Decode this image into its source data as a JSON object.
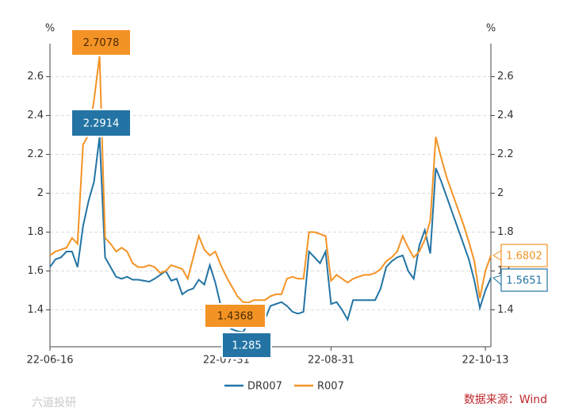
{
  "chart_data": {
    "type": "line",
    "y_label": "%",
    "y2_label": "%",
    "categories": [
      "22-06-16",
      null,
      null,
      null,
      null,
      null,
      null,
      null,
      null,
      null,
      null,
      null,
      null,
      null,
      null,
      null,
      null,
      null,
      null,
      null,
      null,
      null,
      null,
      null,
      null,
      null,
      null,
      null,
      null,
      null,
      null,
      null,
      "22-07-31",
      null,
      null,
      null,
      null,
      null,
      null,
      null,
      null,
      null,
      null,
      null,
      null,
      null,
      null,
      null,
      null,
      null,
      null,
      "22-08-31",
      null,
      null,
      null,
      null,
      null,
      null,
      null,
      null,
      null,
      null,
      null,
      null,
      null,
      null,
      null,
      null,
      null,
      null,
      null,
      null,
      null,
      null,
      null,
      null,
      null,
      null,
      null,
      "22-10-13",
      null
    ],
    "series": [
      {
        "name": "DR007",
        "color": "#2374a4",
        "values": [
          1.62,
          1.66,
          1.67,
          1.7,
          1.7,
          1.62,
          1.83,
          1.96,
          2.06,
          2.2914,
          1.67,
          1.62,
          1.57,
          1.56,
          1.57,
          1.555,
          1.555,
          1.55,
          1.545,
          1.56,
          1.58,
          1.6,
          1.55,
          1.56,
          1.48,
          1.5,
          1.51,
          1.555,
          1.53,
          1.63,
          1.54,
          1.42,
          1.32,
          1.3,
          1.29,
          1.285,
          1.33,
          1.35,
          1.34,
          1.35,
          1.42,
          1.43,
          1.44,
          1.42,
          1.39,
          1.38,
          1.39,
          1.7,
          1.67,
          1.64,
          1.7,
          1.43,
          1.44,
          1.4,
          1.35,
          1.45,
          1.45,
          1.45,
          1.45,
          1.45,
          1.51,
          1.62,
          1.65,
          1.67,
          1.68,
          1.6,
          1.56,
          1.73,
          1.81,
          1.69,
          2.13,
          2.06,
          1.98,
          1.9,
          1.82,
          1.74,
          1.66,
          1.55,
          1.41,
          1.5,
          1.5651
        ]
      },
      {
        "name": "R007",
        "color": "#f39325",
        "values": [
          1.68,
          1.7,
          1.71,
          1.72,
          1.77,
          1.74,
          2.25,
          2.3,
          2.48,
          2.7078,
          1.77,
          1.74,
          1.7,
          1.72,
          1.7,
          1.64,
          1.62,
          1.62,
          1.63,
          1.62,
          1.59,
          1.6,
          1.63,
          1.62,
          1.61,
          1.56,
          1.67,
          1.78,
          1.71,
          1.68,
          1.7,
          1.63,
          1.57,
          1.52,
          1.47,
          1.44,
          1.4368,
          1.45,
          1.45,
          1.45,
          1.47,
          1.48,
          1.48,
          1.56,
          1.57,
          1.56,
          1.56,
          1.8,
          1.8,
          1.79,
          1.78,
          1.55,
          1.58,
          1.56,
          1.54,
          1.56,
          1.57,
          1.58,
          1.58,
          1.59,
          1.61,
          1.65,
          1.67,
          1.7,
          1.78,
          1.72,
          1.67,
          1.7,
          1.76,
          1.86,
          2.29,
          2.18,
          2.08,
          2.0,
          1.92,
          1.84,
          1.75,
          1.65,
          1.46,
          1.6,
          1.6802
        ]
      }
    ],
    "ylim": [
      1.21,
      2.77
    ],
    "yticks": [
      1.4,
      1.6,
      1.8,
      2,
      2.2,
      2.4,
      2.6
    ],
    "y2lim": [
      1.21,
      2.77
    ],
    "y2ticks": [
      1.4,
      1.6,
      1.8,
      2,
      2.2,
      2.4,
      2.6
    ],
    "grid": true,
    "legend": "bottom",
    "source": "数据来源：Wind",
    "watermark": "六道投研"
  }
}
